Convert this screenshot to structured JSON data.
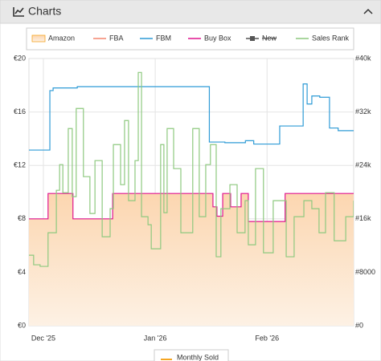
{
  "panel": {
    "title": "Charts"
  },
  "chart_data": {
    "type": "line",
    "xlim": [
      0,
      90
    ],
    "xticks": [
      {
        "value": 4,
        "label": "Dec '25"
      },
      {
        "value": 35,
        "label": "Jan '26"
      },
      {
        "value": 66,
        "label": "Feb '26"
      }
    ],
    "ylim": [
      0,
      20
    ],
    "yticks": [
      {
        "value": 0,
        "label": "€0"
      },
      {
        "value": 4,
        "label": "€4"
      },
      {
        "value": 8,
        "label": "€8"
      },
      {
        "value": 12,
        "label": "€12"
      },
      {
        "value": 16,
        "label": "€16"
      },
      {
        "value": 20,
        "label": "€20"
      }
    ],
    "y2lim": [
      0,
      40000
    ],
    "y2ticks": [
      {
        "value": 0,
        "label": "#0"
      },
      {
        "value": 8000,
        "label": "#8000"
      },
      {
        "value": 16000,
        "label": "#16k"
      },
      {
        "value": 24000,
        "label": "#24k"
      },
      {
        "value": 32000,
        "label": "#32k"
      },
      {
        "value": 40000,
        "label": "#40k"
      }
    ],
    "grid": true,
    "series": [
      {
        "name": "Amazon",
        "color": "#f5a623",
        "style": "area",
        "x": [
          0,
          5.3,
          12.2,
          23.2,
          51.0,
          52.1,
          53.7,
          55.9,
          58.8,
          60.8,
          71.0,
          90
        ],
        "values": [
          8.0,
          9.9,
          8.0,
          9.9,
          8.9,
          8.2,
          9.9,
          8.9,
          9.9,
          7.8,
          9.9,
          9.9
        ]
      },
      {
        "name": "FBA",
        "color": "#f4866f",
        "style": "line"
      },
      {
        "name": "FBM",
        "color": "#2e9bd6",
        "style": "line",
        "x": [
          0,
          5.8,
          6.7,
          13.4,
          50.0,
          54.3,
          60.0,
          62.3,
          69.5,
          76.0,
          77.1,
          78.4,
          80.6,
          83.3,
          85.7,
          90
        ],
        "values": [
          13.15,
          17.6,
          17.8,
          17.9,
          13.75,
          13.7,
          13.85,
          13.6,
          14.95,
          18.1,
          16.6,
          17.2,
          17.1,
          14.8,
          14.6,
          14.6
        ]
      },
      {
        "name": "Buy Box",
        "color": "#e0158f",
        "style": "line",
        "x": [
          0,
          5.3,
          12.2,
          23.2,
          51.0,
          52.1,
          53.7,
          55.9,
          58.8,
          60.8,
          71.0,
          90
        ],
        "values": [
          8.0,
          9.9,
          8.0,
          9.9,
          8.9,
          8.2,
          9.9,
          8.9,
          9.9,
          7.8,
          9.9,
          9.9
        ]
      },
      {
        "name": "New",
        "color": "#555555",
        "style": "marker",
        "hidden": true
      },
      {
        "name": "Sales Rank",
        "color": "#8ec97f",
        "style": "line",
        "axis": "y2",
        "x": [
          0,
          1.3,
          3.1,
          5.3,
          7.6,
          8.5,
          9.4,
          10.9,
          12.0,
          13.1,
          15.1,
          16.9,
          18.3,
          20.3,
          22.5,
          23.4,
          25.4,
          26.5,
          27.6,
          29.4,
          30.3,
          31.2,
          33.0,
          33.9,
          36.5,
          37.4,
          38.3,
          40.1,
          42.1,
          45.4,
          47.2,
          49.0,
          50.3,
          51.9,
          53.2,
          55.7,
          57.7,
          59.9,
          60.8,
          62.8,
          65.0,
          67.7,
          71.3,
          73.5,
          76.2,
          78.4,
          80.4,
          82.2,
          84.6,
          87.8,
          90
        ],
        "values": [
          10560,
          9120,
          8880,
          13920,
          20280,
          24120,
          19920,
          29520,
          19320,
          32520,
          22320,
          16800,
          24720,
          13320,
          17520,
          27120,
          21120,
          30720,
          18720,
          24720,
          37920,
          16320,
          15120,
          11520,
          27120,
          16920,
          29520,
          23520,
          13920,
          29520,
          16320,
          24120,
          27120,
          10320,
          17520,
          21120,
          13920,
          18720,
          12120,
          23520,
          10920,
          18720,
          10320,
          16320,
          18720,
          17520,
          13920,
          19920,
          12720,
          16320,
          18720
        ]
      }
    ],
    "extra_legend": "Monthly Sold"
  }
}
